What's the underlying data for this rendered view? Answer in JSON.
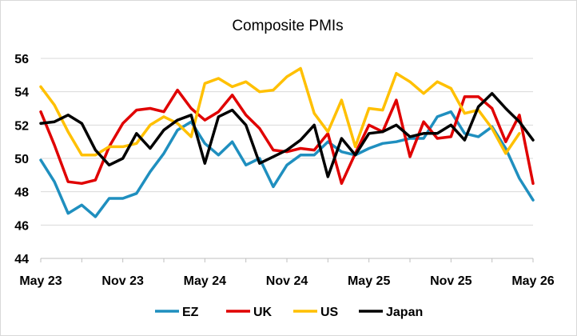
{
  "chart_data": {
    "type": "line",
    "title": "Composite PMIs",
    "xlabel": "",
    "ylabel": "",
    "ylim": [
      44,
      56
    ],
    "yticks": [
      44,
      46,
      48,
      50,
      52,
      54,
      56
    ],
    "x_tick_labels": [
      "May 23",
      "Nov 23",
      "May 24",
      "Nov 24",
      "May 25",
      "Nov 25",
      "May 26"
    ],
    "x_tick_index": [
      0,
      6,
      12,
      18,
      24,
      30,
      36
    ],
    "grid": "horizontal",
    "legend_position": "bottom",
    "series": [
      {
        "name": "EZ",
        "color": "#1f8fbf",
        "values": [
          49.9,
          48.6,
          46.7,
          47.2,
          46.5,
          47.6,
          47.6,
          47.9,
          49.2,
          50.3,
          51.7,
          52.2,
          50.9,
          50.2,
          51.0,
          49.6,
          50.0,
          48.3,
          49.6,
          50.2,
          50.2,
          51.0,
          50.4,
          50.2,
          50.6,
          50.9,
          51.0,
          51.2,
          51.2,
          52.5,
          52.8,
          51.5,
          51.3,
          51.9,
          50.6,
          48.8,
          47.5
        ]
      },
      {
        "name": "UK",
        "color": "#e00000",
        "values": [
          52.8,
          50.8,
          48.6,
          48.5,
          48.7,
          50.7,
          52.1,
          52.9,
          53.0,
          52.8,
          54.1,
          53.0,
          52.3,
          52.8,
          53.8,
          52.6,
          51.8,
          50.5,
          50.4,
          50.6,
          50.5,
          51.5,
          48.5,
          50.3,
          52.0,
          51.6,
          53.5,
          50.1,
          52.2,
          51.2,
          51.3,
          53.7,
          53.7,
          53.0,
          51.0,
          52.6,
          48.5
        ]
      },
      {
        "name": "US",
        "color": "#ffc000",
        "values": [
          54.3,
          53.2,
          51.6,
          50.2,
          50.2,
          50.7,
          50.7,
          50.9,
          52.0,
          52.5,
          52.1,
          51.3,
          54.5,
          54.8,
          54.3,
          54.6,
          54.0,
          54.1,
          54.9,
          55.4,
          52.7,
          51.6,
          53.5,
          50.7,
          53.0,
          52.9,
          55.1,
          54.6,
          53.9,
          54.6,
          54.2,
          52.7,
          52.9,
          51.8,
          50.3,
          51.5
        ]
      },
      {
        "name": "Japan",
        "color": "#000000",
        "values": [
          52.1,
          52.2,
          52.6,
          52.1,
          50.5,
          49.6,
          50.0,
          51.5,
          50.6,
          51.7,
          52.3,
          52.6,
          49.7,
          52.5,
          52.9,
          52.0,
          49.7,
          50.1,
          50.5,
          51.1,
          52.0,
          48.9,
          51.2,
          50.2,
          51.5,
          51.6,
          52.0,
          51.3,
          51.5,
          51.5,
          52.0,
          51.1,
          53.1,
          53.9,
          53.0,
          52.2,
          51.1
        ]
      }
    ]
  }
}
